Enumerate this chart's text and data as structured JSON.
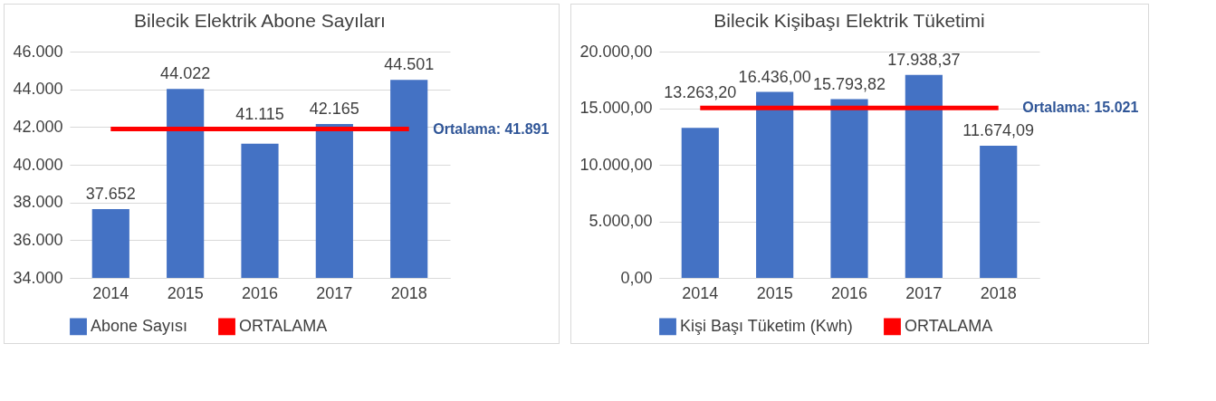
{
  "chart_data": [
    {
      "type": "bar",
      "title": "Bilecik Elektrik Abone Sayıları",
      "categories": [
        "2014",
        "2015",
        "2016",
        "2017",
        "2018"
      ],
      "series": [
        {
          "name": "Abone Sayısı",
          "color": "#4472c4",
          "values": [
            37652,
            44022,
            41115,
            42165,
            44501
          ],
          "value_labels": [
            "37.652",
            "44.022",
            "41.115",
            "42.165",
            "44.501"
          ]
        },
        {
          "name": "ORTALAMA",
          "type": "line",
          "color": "#ff0000",
          "values": [
            41891,
            41891,
            41891,
            41891,
            41891
          ]
        }
      ],
      "ylim": [
        34000,
        46000
      ],
      "yticks": [
        {
          "value": 34000,
          "label": "34.000"
        },
        {
          "value": 36000,
          "label": "36.000"
        },
        {
          "value": 38000,
          "label": "38.000"
        },
        {
          "value": 40000,
          "label": "40.000"
        },
        {
          "value": 42000,
          "label": "42.000"
        },
        {
          "value": 44000,
          "label": "44.000"
        },
        {
          "value": 46000,
          "label": "46.000"
        }
      ],
      "annotations": [
        {
          "text": "Ortalama: 41.891",
          "x": "2018",
          "y": 41891
        }
      ],
      "grid": "y",
      "legend": "bottom"
    },
    {
      "type": "bar",
      "title": "Bilecik Kişibaşı Elektrik Tüketimi",
      "categories": [
        "2014",
        "2015",
        "2016",
        "2017",
        "2018"
      ],
      "series": [
        {
          "name": "Kişi Başı Tüketim (Kwh)",
          "color": "#4472c4",
          "values": [
            13263.2,
            16436.0,
            15793.82,
            17938.37,
            11674.09
          ],
          "value_labels": [
            "13.263,20",
            "16.436,00",
            "15.793,82",
            "17.938,37",
            "11.674,09"
          ]
        },
        {
          "name": "ORTALAMA",
          "type": "line",
          "color": "#ff0000",
          "values": [
            15021,
            15021,
            15021,
            15021,
            15021
          ]
        }
      ],
      "ylim": [
        0,
        20000
      ],
      "yticks": [
        {
          "value": 0,
          "label": "0,00"
        },
        {
          "value": 5000,
          "label": "5.000,00"
        },
        {
          "value": 10000,
          "label": "10.000,00"
        },
        {
          "value": 15000,
          "label": "15.000,00"
        },
        {
          "value": 20000,
          "label": "20.000,00"
        }
      ],
      "annotations": [
        {
          "text": "Ortalama: 15.021",
          "x": "2018",
          "y": 15021
        }
      ],
      "grid": "y",
      "legend": "bottom"
    }
  ]
}
